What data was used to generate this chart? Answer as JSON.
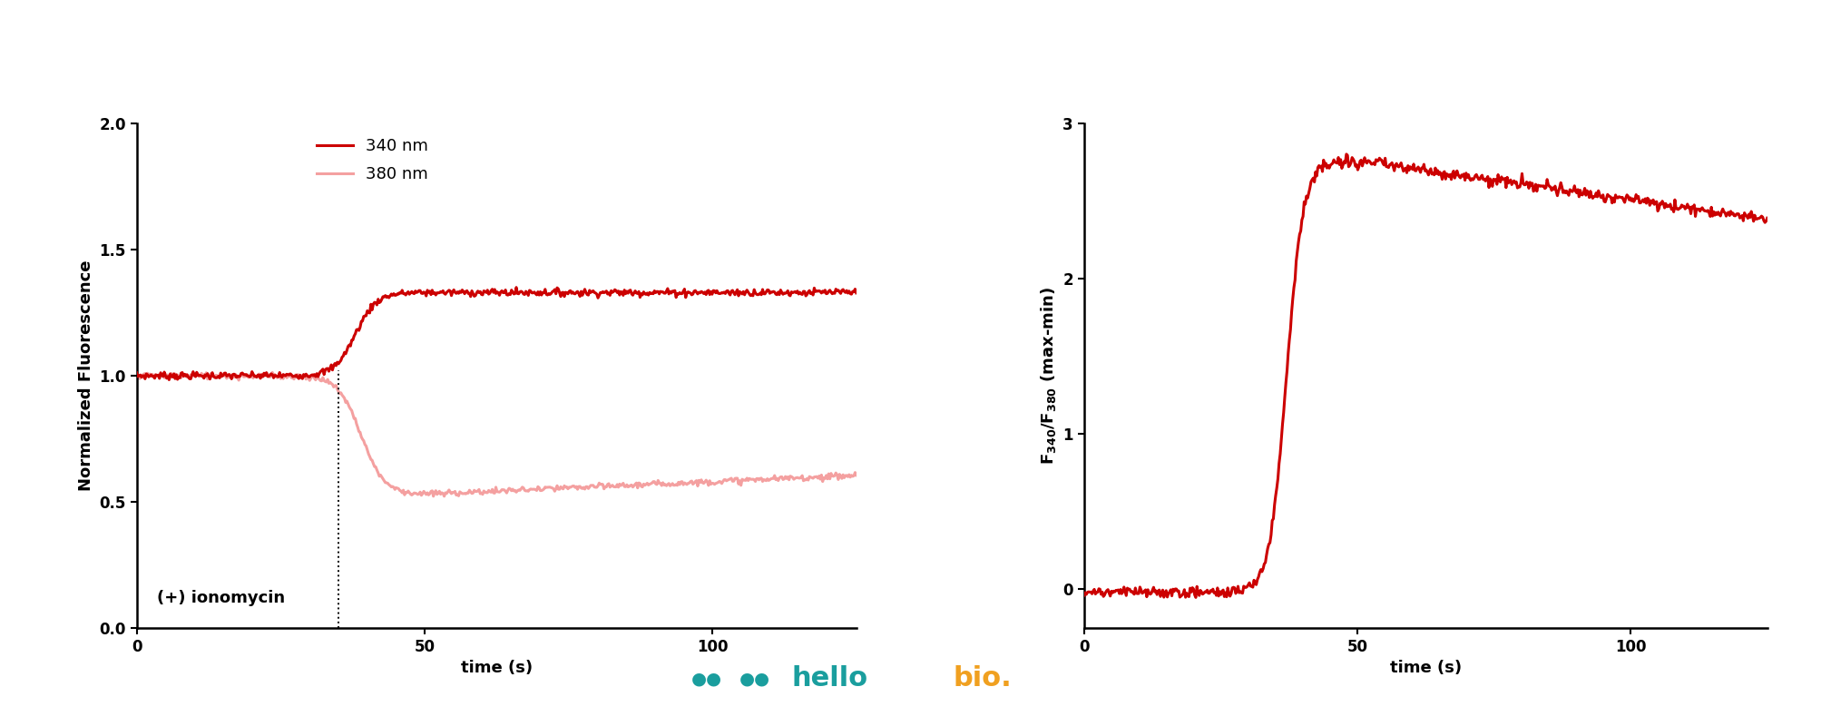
{
  "left_plot": {
    "ylabel": "Normalized Fluorescence",
    "xlabel": "time (s)",
    "ylim": [
      0.0,
      2.0
    ],
    "xlim": [
      0,
      125
    ],
    "yticks": [
      0.0,
      0.5,
      1.0,
      1.5,
      2.0
    ],
    "xticks": [
      0,
      50,
      100
    ],
    "annotation_text": "(+) ionomycin",
    "vline_x": 35,
    "color_340": "#cc0000",
    "color_380": "#f4a0a0",
    "line_width": 2.2
  },
  "right_plot": {
    "ylabel": "F_340/F_380 (max-min)",
    "xlabel": "time (s)",
    "ylim": [
      -0.25,
      3.0
    ],
    "xlim": [
      0,
      125
    ],
    "yticks": [
      0,
      1,
      2,
      3
    ],
    "xticks": [
      0,
      50,
      100
    ],
    "color": "#cc0000",
    "line_width": 2.2
  },
  "background_color": "#ffffff",
  "top_bar_color": "#1c1c2e",
  "logo": {
    "dots_color": "#1a9e9e",
    "hello_color": "#1a9e9e",
    "bio_color": "#f0a020"
  }
}
